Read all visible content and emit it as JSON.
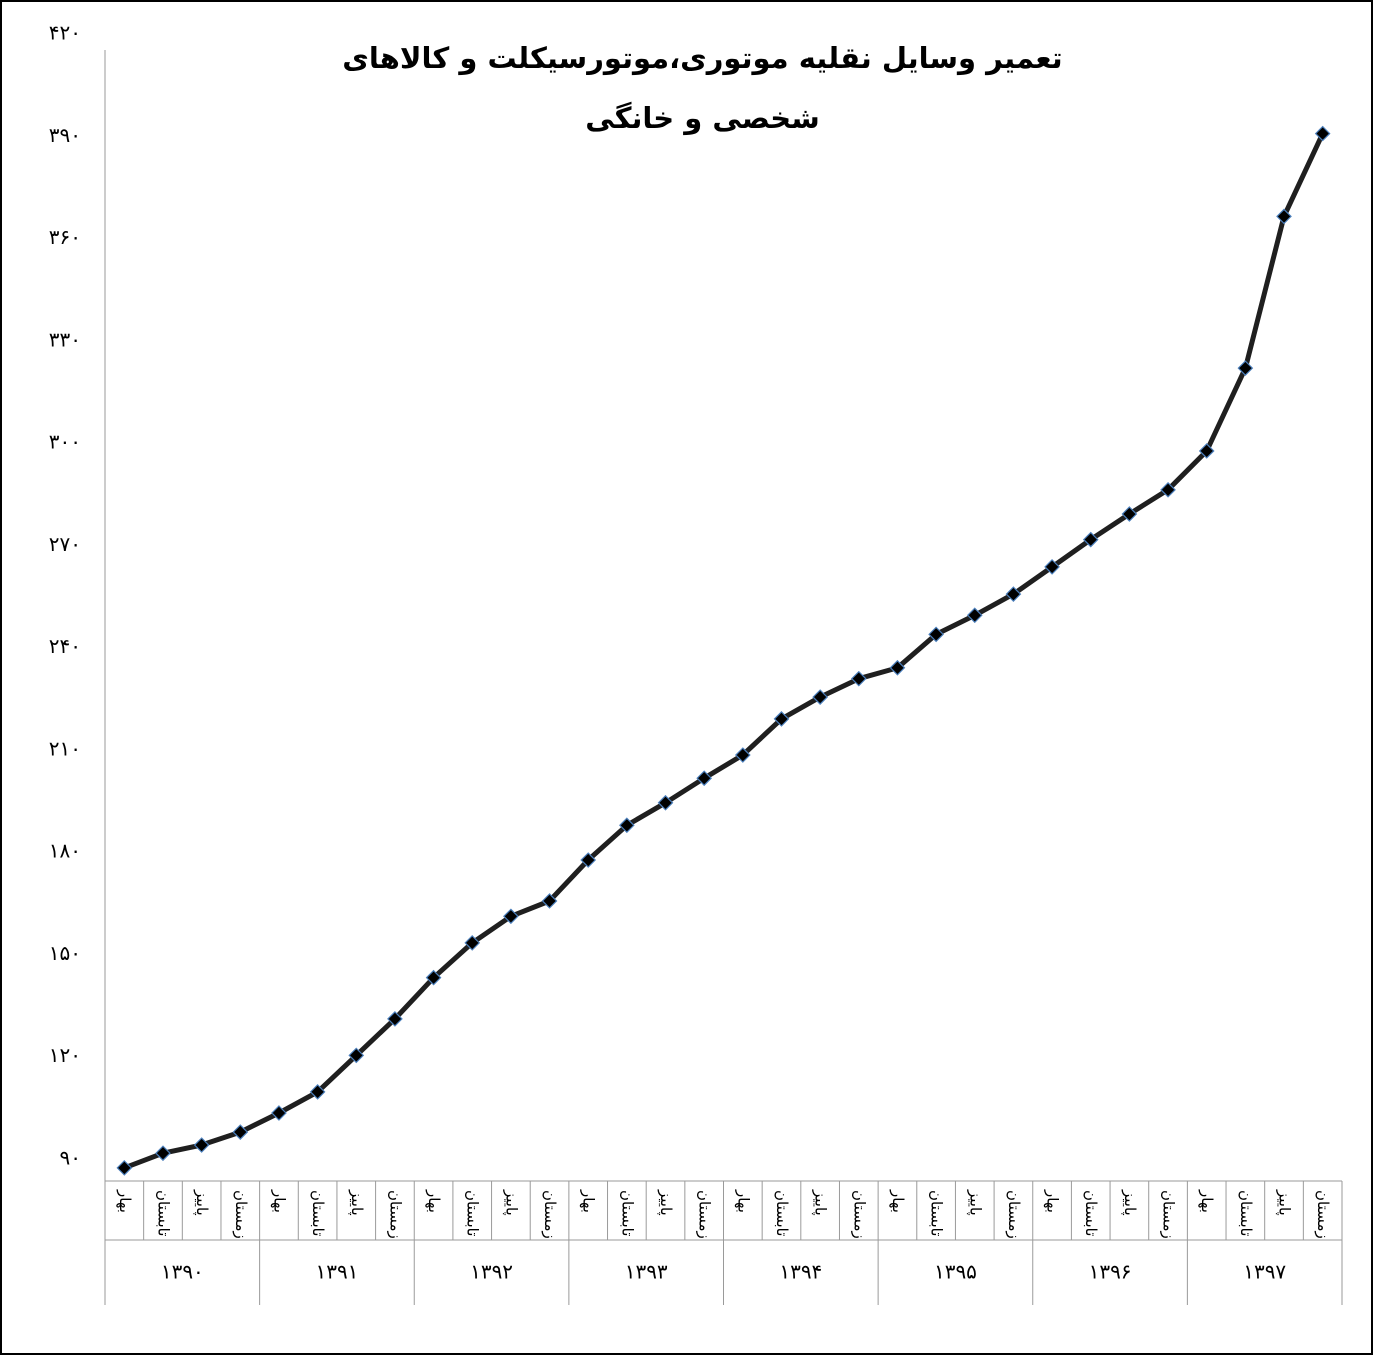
{
  "chart_data": {
    "type": "line",
    "title": "تعمیر وسایل نقلیه موتوری،موتورسیکلت و کالاهای شخصی و خانگی",
    "xlabel": "",
    "ylabel": "",
    "ylim": [
      90,
      420
    ],
    "yticks": [
      {
        "value": 90,
        "label": "۹۰"
      },
      {
        "value": 120,
        "label": "۱۲۰"
      },
      {
        "value": 150,
        "label": "۱۵۰"
      },
      {
        "value": 180,
        "label": "۱۸۰"
      },
      {
        "value": 210,
        "label": "۲۱۰"
      },
      {
        "value": 240,
        "label": "۲۴۰"
      },
      {
        "value": 270,
        "label": "۲۷۰"
      },
      {
        "value": 300,
        "label": "۳۰۰"
      },
      {
        "value": 330,
        "label": "۳۳۰"
      },
      {
        "value": 360,
        "label": "۳۶۰"
      },
      {
        "value": 390,
        "label": "۳۹۰"
      },
      {
        "value": 420,
        "label": "۴۲۰"
      }
    ],
    "seasons": [
      "بهار",
      "تابستان",
      "پاییز",
      "زمستان"
    ],
    "years": [
      "۱۳۹۰",
      "۱۳۹۱",
      "۱۳۹۲",
      "۱۳۹۳",
      "۱۳۹۴",
      "۱۳۹۵",
      "۱۳۹۶",
      "۱۳۹۷"
    ],
    "grid": false,
    "legend": "none",
    "series": [
      {
        "color": "#1f1f1f",
        "marker_fill": "#000000",
        "marker_edge": "#4a7ebb",
        "values": [
          91.5,
          95.8,
          98.2,
          102.0,
          107.6,
          113.8,
          124.5,
          135.2,
          147.3,
          157.5,
          165.3,
          169.8,
          181.8,
          192.0,
          198.6,
          205.8,
          212.6,
          223.2,
          229.6,
          235.0,
          238.2,
          248.0,
          253.6,
          259.8,
          267.8,
          275.8,
          283.3,
          290.4,
          301.8,
          326.1,
          370.6,
          394.9
        ]
      }
    ]
  }
}
